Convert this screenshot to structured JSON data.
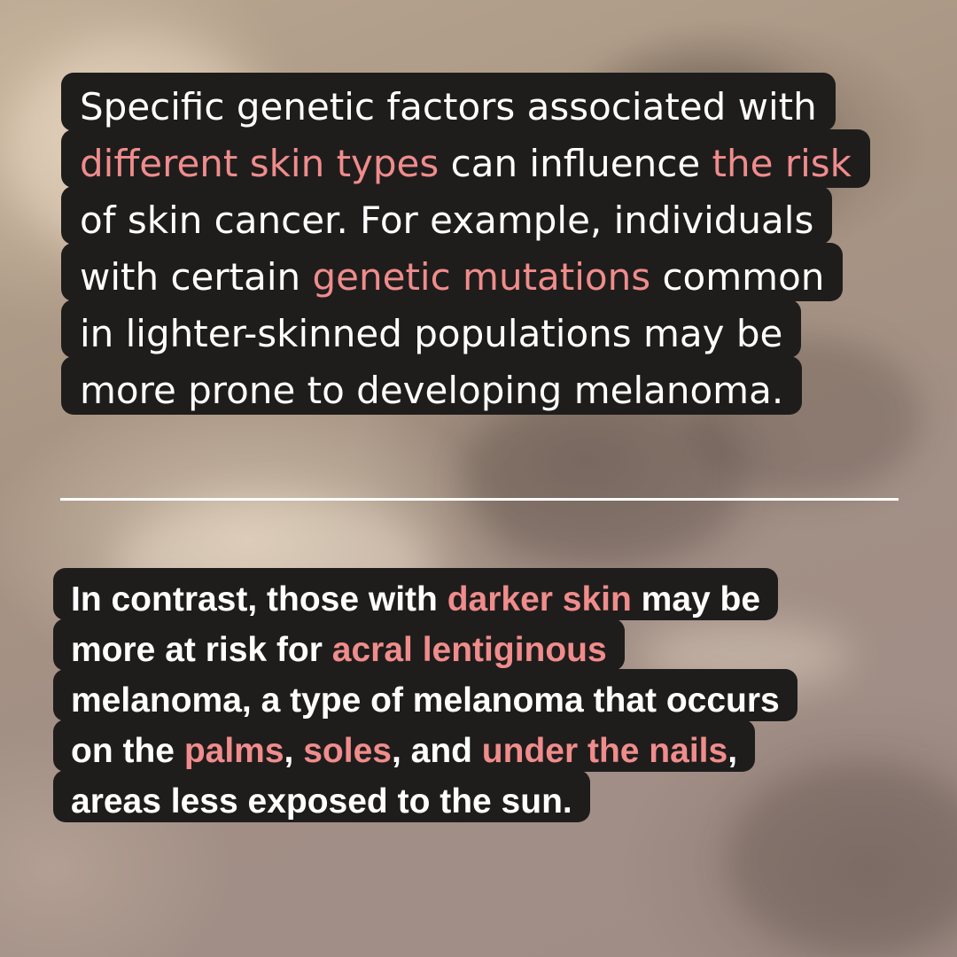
{
  "colors": {
    "box": "#1f1d1c",
    "text": "#ffffff",
    "highlight": "#f08c8c",
    "divider": "#ffffff"
  },
  "block1": {
    "lines": [
      [
        {
          "t": "Specific genetic factors associated with",
          "h": false
        }
      ],
      [
        {
          "t": "different skin types",
          "h": true
        },
        {
          "t": " can influence ",
          "h": false
        },
        {
          "t": "the risk",
          "h": true
        }
      ],
      [
        {
          "t": "of skin cancer. For example, individuals",
          "h": false
        }
      ],
      [
        {
          "t": "with certain ",
          "h": false
        },
        {
          "t": "genetic mutations",
          "h": true
        },
        {
          "t": " common",
          "h": false
        }
      ],
      [
        {
          "t": "in lighter-skinned populations may be",
          "h": false
        }
      ],
      [
        {
          "t": "more prone to developing melanoma.",
          "h": false
        }
      ]
    ]
  },
  "block2": {
    "lines": [
      [
        {
          "t": "In contrast, those with ",
          "h": false
        },
        {
          "t": "darker skin",
          "h": true
        },
        {
          "t": " may be",
          "h": false
        }
      ],
      [
        {
          "t": "more at risk for ",
          "h": false
        },
        {
          "t": "acral lentiginous",
          "h": true
        }
      ],
      [
        {
          "t": "melanoma, a type of melanoma that occurs",
          "h": false
        }
      ],
      [
        {
          "t": "on the ",
          "h": false
        },
        {
          "t": "palms",
          "h": true
        },
        {
          "t": ", ",
          "h": false
        },
        {
          "t": "soles",
          "h": true
        },
        {
          "t": ", and ",
          "h": false
        },
        {
          "t": "under the nails",
          "h": true
        },
        {
          "t": ",",
          "h": false
        }
      ],
      [
        {
          "t": "areas less exposed to the sun.",
          "h": false
        }
      ]
    ]
  }
}
